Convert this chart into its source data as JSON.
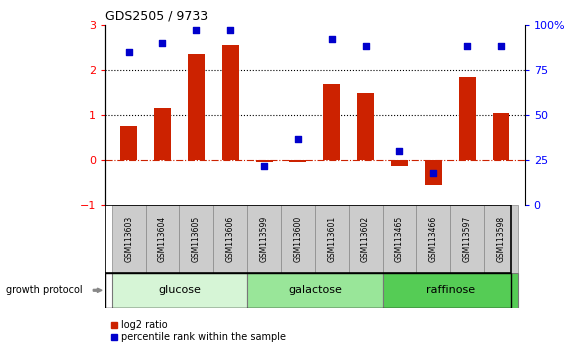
{
  "title": "GDS2505 / 9733",
  "samples": [
    "GSM113603",
    "GSM113604",
    "GSM113605",
    "GSM113606",
    "GSM113599",
    "GSM113600",
    "GSM113601",
    "GSM113602",
    "GSM113465",
    "GSM113466",
    "GSM113597",
    "GSM113598"
  ],
  "log2_ratio": [
    0.75,
    1.15,
    2.35,
    2.55,
    -0.05,
    -0.05,
    1.68,
    1.48,
    -0.12,
    -0.55,
    1.85,
    1.05
  ],
  "percentile_rank": [
    85,
    90,
    97,
    97,
    22,
    37,
    92,
    88,
    30,
    18,
    88,
    88
  ],
  "groups": [
    {
      "label": "glucose",
      "start": 0,
      "end": 4,
      "color": "#d6f5d6"
    },
    {
      "label": "galactose",
      "start": 4,
      "end": 8,
      "color": "#99e699"
    },
    {
      "label": "raffinose",
      "start": 8,
      "end": 12,
      "color": "#55cc55"
    }
  ],
  "bar_color": "#cc2200",
  "scatter_color": "#0000cc",
  "ylim_left": [
    -1,
    3
  ],
  "ylim_right": [
    0,
    100
  ],
  "yticks_left": [
    -1,
    0,
    1,
    2,
    3
  ],
  "yticks_right": [
    0,
    25,
    50,
    75,
    100
  ],
  "hlines": [
    0,
    1,
    2
  ],
  "hline_styles": [
    "dashdot",
    "dotted",
    "dotted"
  ],
  "hline_colors": [
    "#cc2200",
    "#000000",
    "#000000"
  ],
  "legend_items": [
    {
      "label": "log2 ratio",
      "color": "#cc2200"
    },
    {
      "label": "percentile rank within the sample",
      "color": "#0000cc"
    }
  ],
  "growth_protocol_label": "growth protocol",
  "bar_width": 0.5,
  "fig_width": 5.83,
  "fig_height": 3.54
}
